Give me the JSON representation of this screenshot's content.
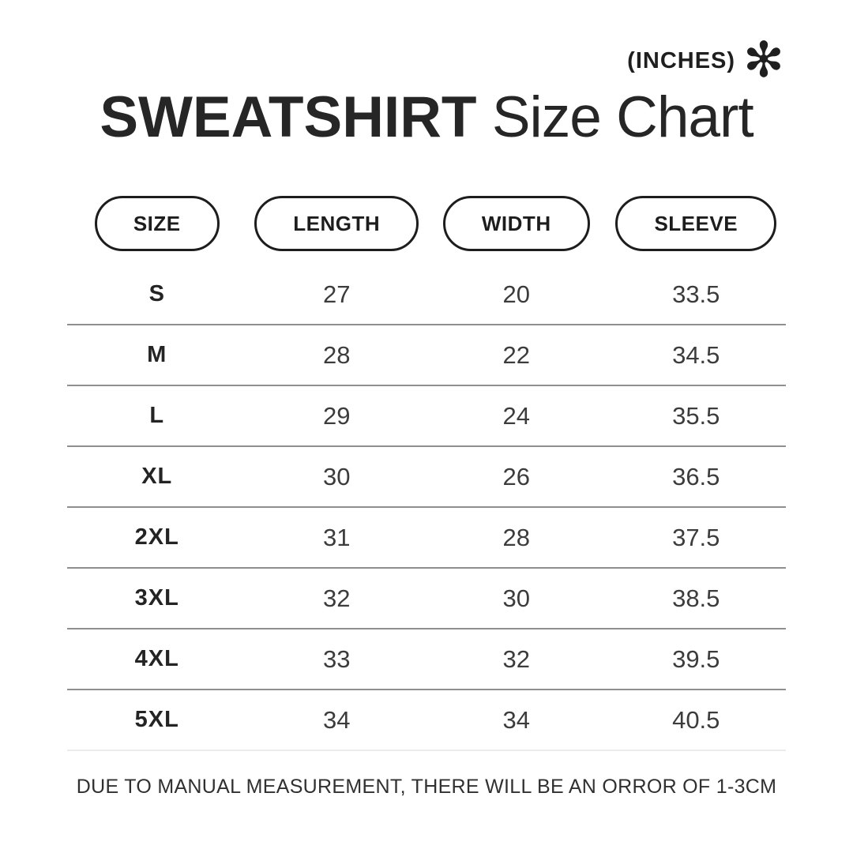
{
  "header": {
    "units_label": "(INCHES)",
    "asterisk_glyph": "✻",
    "title_product": "SWEATSHIRT",
    "title_suffix": "Size Chart"
  },
  "chart_data": {
    "type": "table",
    "title": "SWEATSHIRT Size Chart",
    "units": "INCHES",
    "columns": [
      "SIZE",
      "LENGTH",
      "WIDTH",
      "SLEEVE"
    ],
    "rows": [
      [
        "S",
        27,
        20,
        33.5
      ],
      [
        "M",
        28,
        22,
        34.5
      ],
      [
        "L",
        29,
        24,
        35.5
      ],
      [
        "XL",
        30,
        26,
        36.5
      ],
      [
        "2XL",
        31,
        28,
        37.5
      ],
      [
        "3XL",
        32,
        30,
        38.5
      ],
      [
        "4XL",
        33,
        32,
        39.5
      ],
      [
        "5XL",
        34,
        34,
        40.5
      ]
    ]
  },
  "footer": {
    "note": "DUE TO MANUAL MEASUREMENT, THERE WILL BE AN ORROR OF 1-3CM"
  },
  "colors": {
    "background": "#ffffff",
    "text_primary": "#262626",
    "text_values": "#3c3c3c",
    "pill_border": "#1d1d1d",
    "divider": "#8f8f8f",
    "divider_light": "#ebebeb"
  }
}
